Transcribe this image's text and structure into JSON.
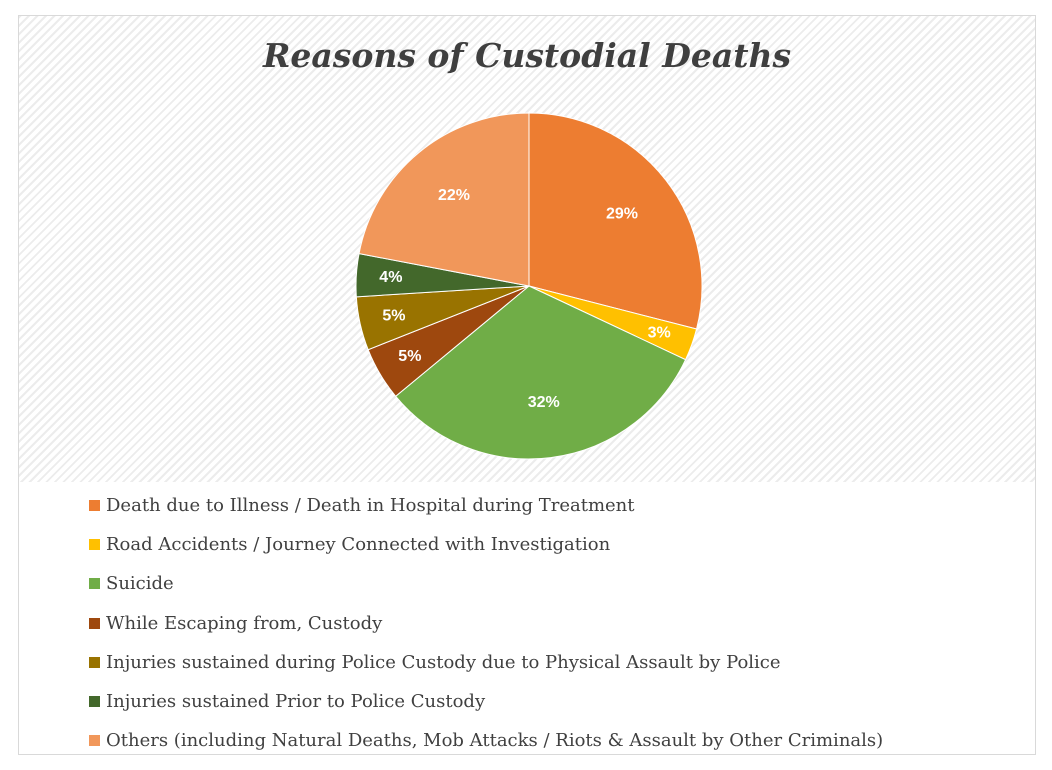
{
  "chart_data": {
    "type": "pie",
    "title": "Reasons of Custodial Deaths",
    "categories": [
      "Death due to Illness / Death in Hospital during Treatment",
      "Road Accidents / Journey Connected with Investigation",
      "Suicide",
      "While Escaping from, Custody",
      "Injuries sustained during Police Custody due to Physical Assault by Police",
      "Injuries sustained Prior to Police Custody",
      "Others (including Natural Deaths, Mob Attacks / Riots & Assault by Other Criminals)"
    ],
    "values": [
      29,
      3,
      32,
      5,
      5,
      4,
      22
    ],
    "labels": [
      "29%",
      "3%",
      "32%",
      "5%",
      "5%",
      "4%",
      "22%"
    ],
    "colors": [
      "#ED7D31",
      "#FFC000",
      "#70AD47",
      "#9E480E",
      "#997300",
      "#43682B",
      "#F1975A"
    ],
    "legend_position": "bottom"
  }
}
